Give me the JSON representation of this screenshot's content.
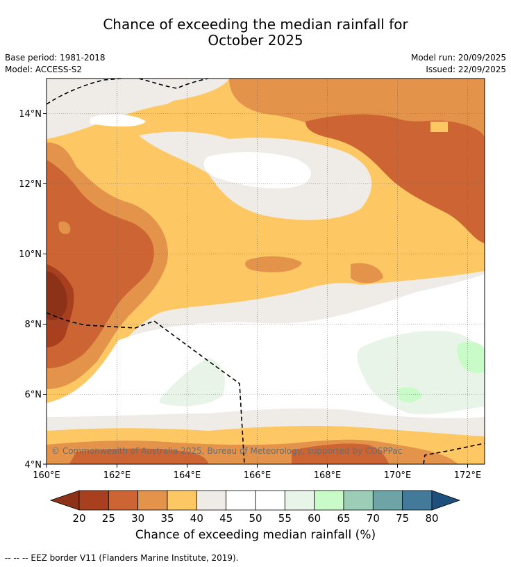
{
  "title_line1": "Chance of exceeding the median rainfall for",
  "title_line2": "October 2025",
  "base_period": "Base period: 1981-2018",
  "model": "Model: ACCESS-S2",
  "model_run": "Model run: 20/09/2025",
  "issued": "Issued: 22/09/2025",
  "copyright": "© Commonwealth of Australia 2025, Bureau of Meteorology, supported by COSPPac",
  "lat_ticks": [
    "14°N",
    "12°N",
    "10°N",
    "8°N",
    "6°N",
    "4°N"
  ],
  "lon_ticks": [
    "160°E",
    "162°E",
    "164°E",
    "166°E",
    "168°E",
    "170°E",
    "172°E"
  ],
  "colorbar": {
    "labels": [
      "20",
      "25",
      "30",
      "35",
      "40",
      "45",
      "50",
      "55",
      "60",
      "65",
      "70",
      "75",
      "80"
    ],
    "colors": [
      "#a8401f",
      "#cc6533",
      "#e3934a",
      "#fdc863",
      "#efece8",
      "#ffffff",
      "#ffffff",
      "#e8f4e8",
      "#c9fbc9",
      "#9cceb7",
      "#6fa4a6",
      "#437a9a"
    ],
    "under_color": "#8c3219",
    "over_color": "#1e4f7d",
    "title": "Chance of exceeding median rainfall (%)"
  },
  "footnote": "-- -- -- EEZ border V11 (Flanders Marine Institute, 2019)."
}
